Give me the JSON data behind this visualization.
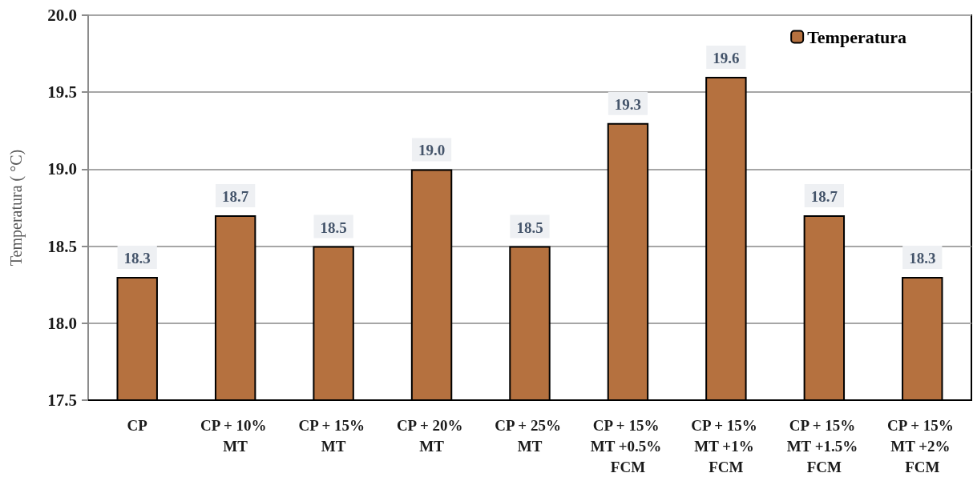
{
  "chart_data": {
    "type": "bar",
    "ylabel": "Temperatura ( °C)",
    "categories": [
      "CP",
      "CP + 10% MT",
      "CP + 15% MT",
      "CP + 20% MT",
      "CP + 25% MT",
      "CP + 15% MT +0.5% FCM",
      "CP + 15% MT +1% FCM",
      "CP + 15% MT +1.5% FCM",
      "CP + 15% MT +2% FCM"
    ],
    "series": [
      {
        "name": "Temperatura",
        "color": "#b5713f",
        "values": [
          18.3,
          18.7,
          18.5,
          19.0,
          18.5,
          19.3,
          19.6,
          18.7,
          18.3
        ],
        "value_labels": [
          "18.3",
          "18.7",
          "18.5",
          "19.0",
          "18.5",
          "19.3",
          "19.6",
          "18.7",
          "18.3"
        ]
      }
    ],
    "ylim": [
      17.5,
      20.0
    ],
    "yticks": [
      17.5,
      {
        "value": 18.0,
        "label": "18.0"
      },
      18.5,
      {
        "value": 19.0,
        "label": "19.0"
      },
      19.5,
      {
        "value": 20.0,
        "label": "20.0"
      }
    ],
    "grid": "y",
    "legend": "top right"
  }
}
